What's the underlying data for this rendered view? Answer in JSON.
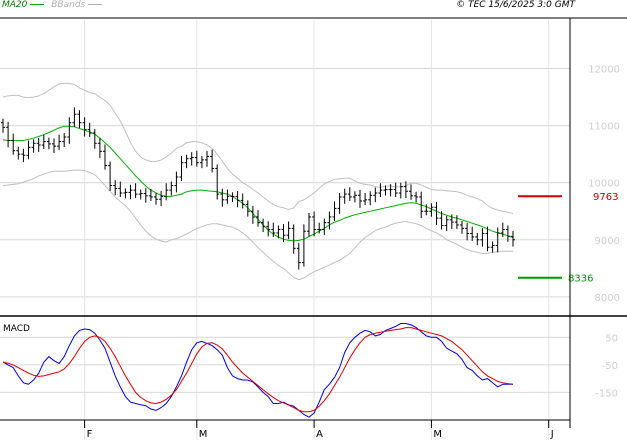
{
  "chart_data": [
    {
      "type": "ohlc",
      "legend": [
        {
          "name": "MA20",
          "color": "#00b000"
        },
        {
          "name": "BBands",
          "color": "#b0b0b0"
        }
      ],
      "source": "© TEC 15/6/2025 3:0 GMT",
      "ylim": [
        7700,
        12850
      ],
      "y_ticks": [
        {
          "value": 8000,
          "label": "8000"
        },
        {
          "value": 9000,
          "label": "9000"
        },
        {
          "value": 10000,
          "label": "10000"
        },
        {
          "value": 11000,
          "label": "11000"
        },
        {
          "value": 12000,
          "label": "12000"
        }
      ],
      "months": [
        "F",
        "M",
        "A",
        "M",
        "J"
      ],
      "month_start_index": [
        16,
        38,
        61,
        84,
        107
      ],
      "grid": true,
      "close": [
        10970,
        10740,
        10560,
        10500,
        10480,
        10620,
        10690,
        10660,
        10720,
        10680,
        10640,
        10720,
        10800,
        11050,
        11200,
        11050,
        10930,
        10870,
        10690,
        10550,
        10300,
        9950,
        9900,
        9820,
        9830,
        9870,
        9800,
        9810,
        9770,
        9750,
        9710,
        9760,
        9870,
        9950,
        10100,
        10350,
        10420,
        10440,
        10350,
        10400,
        10460,
        10250,
        9800,
        9700,
        9760,
        9760,
        9690,
        9620,
        9500,
        9400,
        9300,
        9230,
        9180,
        9120,
        9180,
        9080,
        9200,
        8850,
        8600,
        9150,
        9400,
        9180,
        9180,
        9300,
        9400,
        9550,
        9750,
        9800,
        9750,
        9780,
        9680,
        9700,
        9780,
        9820,
        9870,
        9880,
        9880,
        9820,
        9930,
        9850,
        9770,
        9750,
        9500,
        9500,
        9570,
        9380,
        9250,
        9350,
        9310,
        9260,
        9200,
        9110,
        9050,
        9000,
        9110,
        8870,
        8900,
        9120,
        9180,
        9060,
        9000
      ],
      "band_upper": [
        11500,
        11520,
        11530,
        11530,
        11500,
        11490,
        11500,
        11520,
        11560,
        11620,
        11680,
        11730,
        11740,
        11740,
        11720,
        11660,
        11620,
        11580,
        11560,
        11500,
        11440,
        11360,
        11220,
        11080,
        10900,
        10700,
        10550,
        10450,
        10400,
        10370,
        10370,
        10400,
        10450,
        10520,
        10600,
        10640,
        10700,
        10720,
        10720,
        10700,
        10660,
        10600,
        10500,
        10380,
        10250,
        10150,
        10080,
        10000,
        9950,
        9880,
        9820,
        9750,
        9680,
        9620,
        9580,
        9560,
        9530,
        9560,
        9670,
        9700,
        9760,
        9820,
        9900,
        9980,
        10020,
        10060,
        10070,
        10080,
        10080,
        10030,
        9990,
        9970,
        9960,
        9930,
        9920,
        9940,
        9940,
        9930,
        9930,
        9950,
        9990,
        9990,
        9960,
        9920,
        9880,
        9870,
        9870,
        9860,
        9850,
        9840,
        9820,
        9780,
        9750,
        9720,
        9680,
        9600,
        9550,
        9520,
        9500,
        9480,
        9460
      ],
      "band_lower": [
        9950,
        9960,
        9970,
        9980,
        10010,
        10040,
        10070,
        10120,
        10150,
        10180,
        10200,
        10200,
        10200,
        10210,
        10220,
        10220,
        10210,
        10180,
        10140,
        10050,
        9950,
        9850,
        9750,
        9670,
        9600,
        9500,
        9380,
        9260,
        9150,
        9070,
        9010,
        8980,
        8960,
        9000,
        9020,
        9060,
        9100,
        9150,
        9200,
        9230,
        9260,
        9280,
        9280,
        9260,
        9240,
        9220,
        9180,
        9120,
        9050,
        8960,
        8860,
        8780,
        8700,
        8620,
        8550,
        8500,
        8420,
        8340,
        8300,
        8330,
        8390,
        8440,
        8480,
        8520,
        8560,
        8600,
        8640,
        8700,
        8760,
        8860,
        8960,
        9040,
        9100,
        9160,
        9200,
        9220,
        9260,
        9290,
        9310,
        9320,
        9300,
        9280,
        9250,
        9200,
        9160,
        9120,
        9070,
        9000,
        8960,
        8920,
        8870,
        8830,
        8800,
        8780,
        8760,
        8760,
        8780,
        8790,
        8800,
        8800,
        8800
      ],
      "ma20": [
        10750,
        10740,
        10740,
        10740,
        10740,
        10760,
        10780,
        10810,
        10840,
        10880,
        10920,
        10960,
        10990,
        10990,
        10980,
        10950,
        10920,
        10890,
        10850,
        10780,
        10700,
        10620,
        10520,
        10420,
        10320,
        10220,
        10120,
        10030,
        9940,
        9870,
        9820,
        9780,
        9760,
        9760,
        9780,
        9800,
        9840,
        9860,
        9870,
        9870,
        9860,
        9850,
        9840,
        9820,
        9800,
        9760,
        9700,
        9640,
        9560,
        9460,
        9360,
        9260,
        9170,
        9100,
        9050,
        9010,
        8990,
        8980,
        8990,
        9010,
        9060,
        9100,
        9150,
        9200,
        9260,
        9310,
        9340,
        9380,
        9410,
        9440,
        9460,
        9480,
        9500,
        9520,
        9540,
        9560,
        9580,
        9600,
        9620,
        9640,
        9650,
        9640,
        9610,
        9580,
        9540,
        9500,
        9460,
        9430,
        9400,
        9380,
        9350,
        9320,
        9290,
        9260,
        9230,
        9190,
        9150,
        9120,
        9100,
        9070,
        9040
      ],
      "annotations": [
        {
          "value": 9763,
          "label": "9763",
          "color": "#d40000"
        },
        {
          "value": 8336,
          "label": "8336",
          "color": "#009900"
        }
      ]
    },
    {
      "type": "line",
      "title": "MACD",
      "ylim": [
        -250,
        120
      ],
      "y_ticks": [
        {
          "value": 50,
          "label": "50"
        },
        {
          "value": -50,
          "label": "-50"
        },
        {
          "value": -150,
          "label": "-150"
        }
      ],
      "series": [
        {
          "color": "#0000ee",
          "values": [
            -40,
            -50,
            -60,
            -90,
            -115,
            -120,
            -105,
            -80,
            -40,
            -20,
            -35,
            -45,
            -20,
            20,
            55,
            75,
            80,
            78,
            65,
            40,
            10,
            -40,
            -90,
            -130,
            -165,
            -185,
            -190,
            -195,
            -198,
            -210,
            -215,
            -205,
            -190,
            -165,
            -130,
            -90,
            -40,
            5,
            30,
            35,
            28,
            20,
            5,
            -15,
            -60,
            -90,
            -100,
            -105,
            -105,
            -112,
            -130,
            -150,
            -165,
            -190,
            -190,
            -185,
            -195,
            -200,
            -215,
            -230,
            -240,
            -225,
            -185,
            -140,
            -120,
            -95,
            -60,
            -5,
            30,
            50,
            65,
            75,
            70,
            55,
            60,
            75,
            82,
            90,
            100,
            100,
            95,
            85,
            70,
            55,
            50,
            50,
            35,
            10,
            0,
            -10,
            -30,
            -60,
            -70,
            -90,
            -105,
            -100,
            -115,
            -130,
            -120,
            -120,
            -120
          ]
        },
        {
          "color": "#dd0000",
          "values": [
            -40,
            -44,
            -50,
            -60,
            -70,
            -80,
            -88,
            -92,
            -90,
            -85,
            -80,
            -75,
            -65,
            -45,
            -20,
            10,
            35,
            50,
            55,
            50,
            35,
            10,
            -20,
            -55,
            -90,
            -120,
            -150,
            -168,
            -180,
            -188,
            -190,
            -185,
            -175,
            -160,
            -140,
            -110,
            -80,
            -45,
            -10,
            15,
            28,
            30,
            22,
            8,
            -15,
            -40,
            -60,
            -80,
            -95,
            -110,
            -125,
            -140,
            -155,
            -168,
            -180,
            -188,
            -196,
            -205,
            -215,
            -220,
            -220,
            -215,
            -200,
            -180,
            -155,
            -125,
            -95,
            -60,
            -25,
            5,
            30,
            50,
            60,
            65,
            68,
            72,
            75,
            78,
            80,
            85,
            85,
            80,
            75,
            70,
            65,
            60,
            55,
            45,
            35,
            20,
            5,
            -15,
            -35,
            -55,
            -75,
            -90,
            -100,
            -110,
            -115,
            -118,
            -120
          ]
        }
      ]
    }
  ]
}
